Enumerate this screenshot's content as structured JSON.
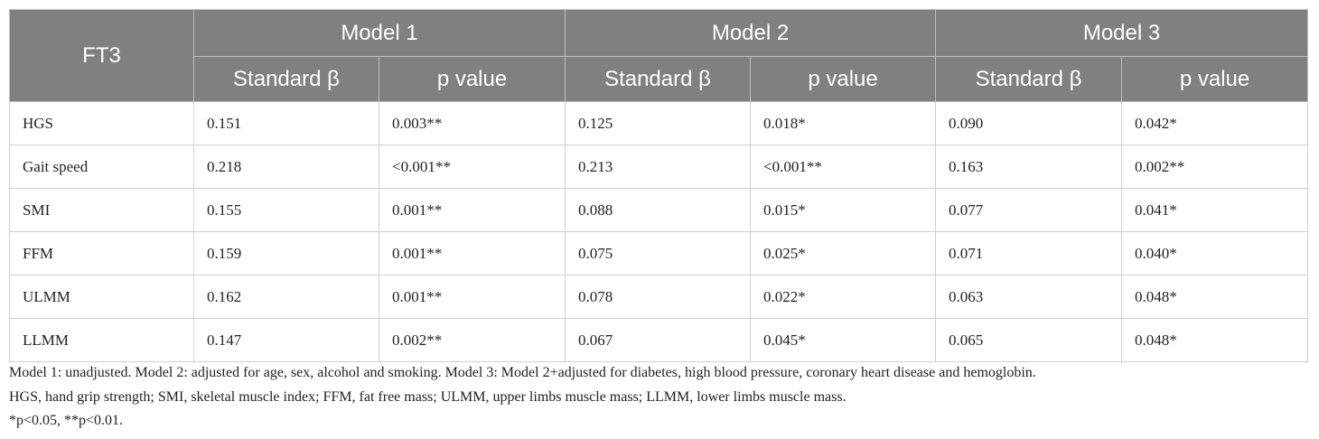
{
  "header": {
    "stub": "FT3",
    "groups": [
      "Model 1",
      "Model 2",
      "Model 3"
    ],
    "columns": [
      "Standard β",
      "p value",
      "Standard β",
      "p value",
      "Standard β",
      "p value"
    ]
  },
  "table": {
    "rows": [
      [
        "HGS",
        "0.151",
        "0.003**",
        "0.125",
        "0.018*",
        "0.090",
        "0.042*"
      ],
      [
        "Gait speed",
        "0.218",
        "<0.001**",
        "0.213",
        "<0.001**",
        "0.163",
        "0.002**"
      ],
      [
        "SMI",
        "0.155",
        "0.001**",
        "0.088",
        "0.015*",
        "0.077",
        "0.041*"
      ],
      [
        "FFM",
        "0.159",
        "0.001**",
        "0.075",
        "0.025*",
        "0.071",
        "0.040*"
      ],
      [
        "ULMM",
        "0.162",
        "0.001**",
        "0.078",
        "0.022*",
        "0.063",
        "0.048*"
      ],
      [
        "LLMM",
        "0.147",
        "0.002**",
        "0.067",
        "0.045*",
        "0.065",
        "0.048*"
      ]
    ]
  },
  "notes": [
    "Model 1: unadjusted. Model 2: adjusted for age, sex, alcohol and smoking. Model 3: Model 2+adjusted for diabetes, high blood pressure, coronary heart disease and hemoglobin.",
    "HGS, hand grip strength; SMI, skeletal muscle index; FFM, fat free mass; ULMM, upper limbs muscle mass; LLMM, lower limbs muscle mass.",
    "*p<0.05, **p<0.01."
  ]
}
